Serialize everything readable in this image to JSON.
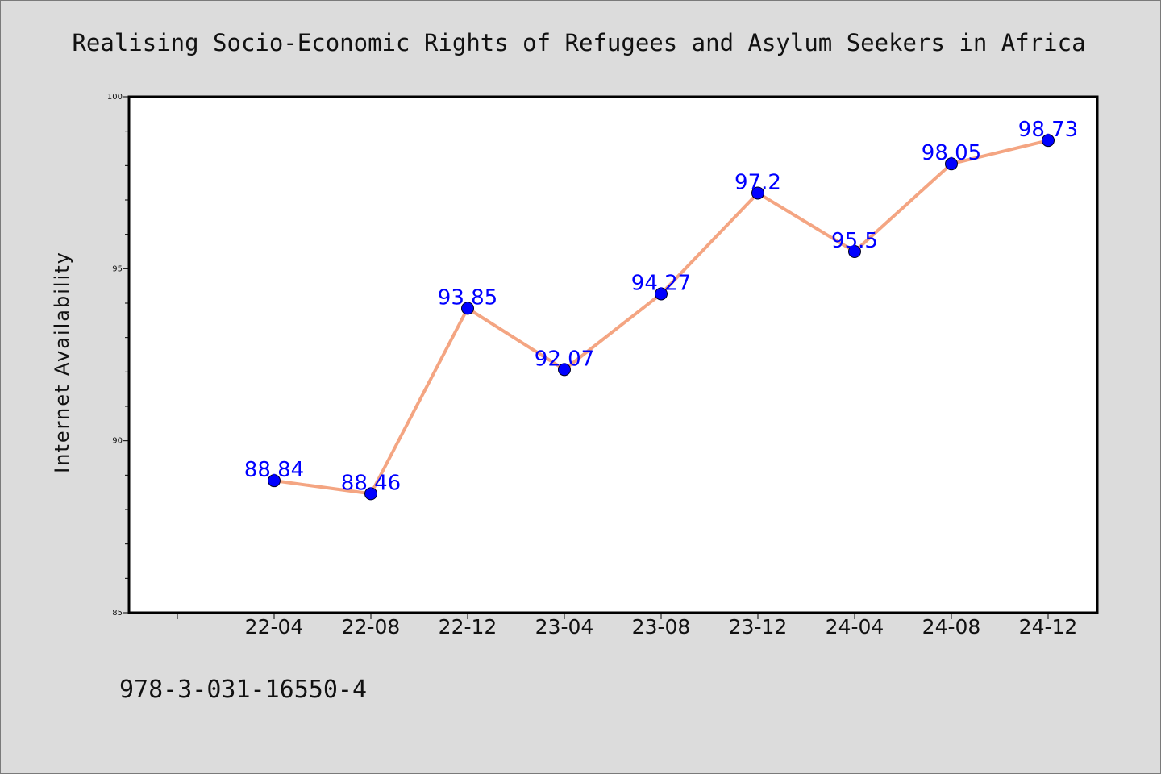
{
  "chart_data": {
    "type": "line",
    "title": "Realising Socio-Economic Rights of Refugees and Asylum Seekers in Africa",
    "xlabel": "",
    "ylabel": "Internet Availability",
    "categories": [
      "22-04",
      "22-08",
      "22-12",
      "23-04",
      "23-08",
      "23-12",
      "24-04",
      "24-08",
      "24-12"
    ],
    "series": [
      {
        "values": [
          88.84,
          88.46,
          93.85,
          92.07,
          94.27,
          97.2,
          95.5,
          98.05,
          98.73
        ],
        "labels": [
          "88.84",
          "88.46",
          "93.85",
          "92.07",
          "94.27",
          "97.2",
          "95.5",
          "98.05",
          "98.73"
        ],
        "line_color": "#f4a582",
        "marker_color": "#0000ff"
      }
    ],
    "ylim": [
      85,
      100
    ],
    "yticks": [
      "85",
      "90",
      "95",
      "100"
    ],
    "grid": false,
    "legend": "none"
  },
  "footer": {
    "isbn": "978-3-031-16550-4"
  },
  "colors": {
    "background": "#dcdcdc",
    "plot_area": "#ffffff",
    "line": "#f4a582",
    "marker": "#0000ff",
    "data_label": "#0000ff"
  }
}
